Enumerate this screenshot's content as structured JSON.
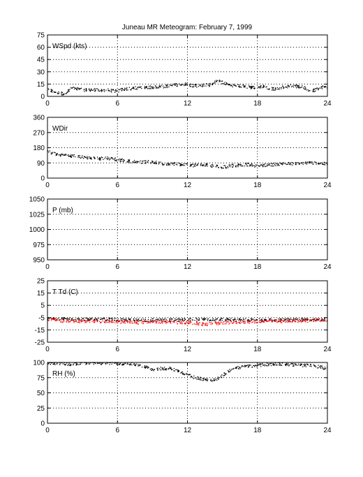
{
  "title": "Juneau MR Meteogram:  February  7, 1999",
  "colors": {
    "black_series": "#000000",
    "red_series": "#ff0000"
  },
  "chart_data": [
    {
      "type": "scatter",
      "ylabel": "WSpd (kts)",
      "xlim": [
        0,
        24
      ],
      "ylim": [
        0,
        75
      ],
      "xticks": [
        0,
        6,
        12,
        18,
        24
      ],
      "yticks": [
        0,
        15,
        30,
        45,
        60,
        75
      ],
      "grid": true,
      "series": [
        {
          "color": "#000000",
          "x": [
            0,
            0.5,
            1,
            1.5,
            2,
            2.5,
            3,
            3.5,
            4,
            4.5,
            5,
            5.5,
            6,
            6.5,
            7,
            7.5,
            8,
            8.5,
            9,
            9.5,
            10,
            10.5,
            11,
            11.5,
            12,
            12.5,
            13,
            13.5,
            14,
            14.5,
            15,
            15.5,
            16,
            16.5,
            17,
            17.5,
            18,
            18.5,
            19,
            19.5,
            20,
            20.5,
            21,
            21.5,
            22,
            22.5,
            23,
            23.5,
            24
          ],
          "y": [
            8,
            6,
            4,
            3,
            10,
            9,
            8,
            8,
            8,
            7,
            8,
            7,
            6,
            9,
            9,
            10,
            11,
            11,
            11,
            12,
            12,
            13,
            14,
            15,
            15,
            13,
            13,
            14,
            14,
            19,
            17,
            14,
            13,
            13,
            12,
            11,
            11,
            12,
            10,
            9,
            11,
            12,
            13,
            12,
            11,
            6,
            8,
            11,
            12
          ]
        }
      ]
    },
    {
      "type": "scatter",
      "ylabel": "WDir",
      "xlim": [
        0,
        24
      ],
      "ylim": [
        0,
        360
      ],
      "xticks": [
        0,
        6,
        12,
        18,
        24
      ],
      "yticks": [
        0,
        90,
        180,
        270,
        360
      ],
      "grid": true,
      "series": [
        {
          "color": "#000000",
          "x": [
            0,
            0.5,
            1,
            1.5,
            2,
            2.5,
            3,
            3.5,
            4,
            4.5,
            5,
            5.5,
            6,
            6.5,
            7,
            7.5,
            8,
            8.5,
            9,
            9.5,
            10,
            10.5,
            11,
            11.5,
            12,
            12.5,
            13,
            13.5,
            14,
            14.5,
            15,
            15.5,
            16,
            16.5,
            17,
            17.5,
            18,
            18.5,
            19,
            19.5,
            20,
            20.5,
            21,
            21.5,
            22,
            22.5,
            23,
            23.5,
            24
          ],
          "y": [
            160,
            145,
            140,
            135,
            130,
            130,
            125,
            120,
            120,
            115,
            120,
            115,
            110,
            105,
            100,
            100,
            95,
            95,
            95,
            90,
            85,
            85,
            85,
            80,
            80,
            75,
            80,
            80,
            75,
            70,
            65,
            70,
            75,
            75,
            80,
            80,
            70,
            75,
            80,
            80,
            85,
            85,
            85,
            85,
            90,
            90,
            90,
            85,
            85
          ]
        }
      ]
    },
    {
      "type": "scatter",
      "ylabel": "P (mb)",
      "xlim": [
        0,
        24
      ],
      "ylim": [
        950,
        1050
      ],
      "xticks": [
        0,
        6,
        12,
        18,
        24
      ],
      "yticks": [
        950,
        975,
        1000,
        1025,
        1050
      ],
      "grid": true,
      "series": []
    },
    {
      "type": "scatter",
      "ylabel": "T Td (C)",
      "xlim": [
        0,
        24
      ],
      "ylim": [
        -25,
        25
      ],
      "xticks": [
        0,
        6,
        12,
        18,
        24
      ],
      "yticks": [
        -25,
        -15,
        -5,
        5,
        15,
        25
      ],
      "grid": true,
      "series": [
        {
          "color": "#000000",
          "x": [
            0,
            0.5,
            1,
            1.5,
            2,
            2.5,
            3,
            3.5,
            4,
            4.5,
            5,
            5.5,
            6,
            6.5,
            7,
            7.5,
            8,
            8.5,
            9,
            9.5,
            10,
            10.5,
            11,
            11.5,
            12,
            12.5,
            13,
            13.5,
            14,
            14.5,
            15,
            15.5,
            16,
            16.5,
            17,
            17.5,
            18,
            18.5,
            19,
            19.5,
            20,
            20.5,
            21,
            21.5,
            22,
            22.5,
            23,
            23.5,
            24
          ],
          "y": [
            -6,
            -6,
            -6,
            -6,
            -6,
            -6.5,
            -6.5,
            -6.5,
            -6.5,
            -6.5,
            -6.5,
            -6.5,
            -7,
            -7,
            -7,
            -7,
            -7,
            -7,
            -7,
            -7,
            -7,
            -7,
            -7,
            -7,
            -7,
            -6.5,
            -6.5,
            -6.5,
            -6.5,
            -6.5,
            -6.5,
            -6.5,
            -7,
            -7,
            -7,
            -7,
            -7,
            -7,
            -7,
            -7,
            -7,
            -7,
            -7,
            -6.5,
            -6.5,
            -6.5,
            -6.5,
            -6.5,
            -6.5
          ]
        },
        {
          "color": "#ff0000",
          "x": [
            0,
            0.5,
            1,
            1.5,
            2,
            2.5,
            3,
            3.5,
            4,
            4.5,
            5,
            5.5,
            6,
            6.5,
            7,
            7.5,
            8,
            8.5,
            9,
            9.5,
            10,
            10.5,
            11,
            11.5,
            12,
            12.5,
            13,
            13.5,
            14,
            14.5,
            15,
            15.5,
            16,
            16.5,
            17,
            17.5,
            18,
            18.5,
            19,
            19.5,
            20,
            20.5,
            21,
            21.5,
            22,
            22.5,
            23,
            23.5,
            24
          ],
          "y": [
            -7,
            -7,
            -7.5,
            -7.5,
            -7.5,
            -8,
            -8,
            -8,
            -8,
            -8,
            -8,
            -8,
            -8.5,
            -8.5,
            -8.5,
            -9,
            -9,
            -8.5,
            -8.5,
            -8.5,
            -8.5,
            -8.5,
            -9,
            -9,
            -9,
            -9.5,
            -10,
            -10.5,
            -10,
            -9.5,
            -9.5,
            -9,
            -9,
            -8.5,
            -8.5,
            -8.5,
            -8,
            -8,
            -8,
            -8,
            -8,
            -8,
            -7.5,
            -7.5,
            -7.5,
            -7.5,
            -7,
            -7,
            -7
          ]
        }
      ]
    },
    {
      "type": "scatter",
      "ylabel": "RH (%)",
      "xlim": [
        0,
        24
      ],
      "ylim": [
        0,
        100
      ],
      "xticks": [
        0,
        6,
        12,
        18,
        24
      ],
      "yticks": [
        0,
        25,
        50,
        75,
        100
      ],
      "grid": true,
      "series": [
        {
          "color": "#000000",
          "x": [
            0,
            0.5,
            1,
            1.5,
            2,
            2.5,
            3,
            3.5,
            4,
            4.5,
            5,
            5.5,
            6,
            6.5,
            7,
            7.5,
            8,
            8.5,
            9,
            9.5,
            10,
            10.5,
            11,
            11.5,
            12,
            12.5,
            13,
            13.5,
            14,
            14.5,
            15,
            15.5,
            16,
            16.5,
            17,
            17.5,
            18,
            18.5,
            19,
            19.5,
            20,
            20.5,
            21,
            21.5,
            22,
            22.5,
            23,
            23.5,
            24
          ],
          "y": [
            99,
            99,
            99,
            98,
            97,
            98,
            99,
            99,
            99,
            99,
            99,
            99,
            99,
            98,
            98,
            97,
            95,
            92,
            88,
            90,
            90,
            90,
            88,
            84,
            80,
            76,
            74,
            72,
            70,
            72,
            78,
            86,
            90,
            92,
            94,
            94,
            95,
            96,
            97,
            97,
            98,
            97,
            96,
            96,
            95,
            95,
            94,
            92,
            90
          ]
        }
      ]
    }
  ]
}
